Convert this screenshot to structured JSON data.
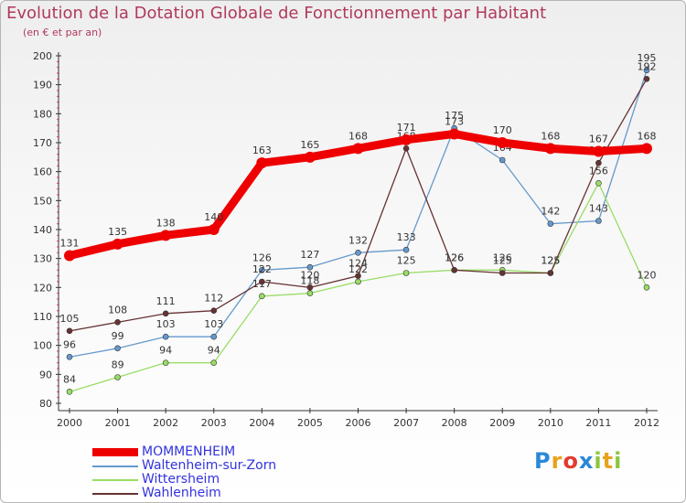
{
  "title": "Evolution de la Dotation Globale de Fonctionnement par Habitant",
  "subtitle": "(en € et par an)",
  "brand": {
    "text": "Proxiti",
    "colors": [
      "#2a88d8",
      "#e8a21c",
      "#e23b2f",
      "#2a88d8",
      "#8cc63f",
      "#e8a21c",
      "#8cc63f"
    ]
  },
  "chart_data": {
    "type": "line",
    "title": "Evolution de la Dotation Globale de Fonctionnement par Habitant",
    "subtitle": "(en € et par an)",
    "x": [
      "2000",
      "2001",
      "2002",
      "2003",
      "2004",
      "2005",
      "2006",
      "2007",
      "2008",
      "2009",
      "2010",
      "2011",
      "2012"
    ],
    "ylim": [
      80,
      200
    ],
    "yticks": [
      "80",
      "90",
      "100",
      "110",
      "120",
      "130",
      "140",
      "150",
      "160",
      "170",
      "180",
      "190",
      "200"
    ],
    "grid": false,
    "series": [
      {
        "name": "MOMMENHEIM",
        "color": "#ee0000",
        "values": [
          131,
          135,
          138,
          140,
          163,
          165,
          168,
          171,
          173,
          170,
          168,
          167,
          168
        ]
      },
      {
        "name": "Waltenheim-sur-Zorn",
        "color": "#6699cc",
        "values": [
          96,
          99,
          103,
          103,
          126,
          127,
          132,
          133,
          175,
          164,
          142,
          143,
          195
        ]
      },
      {
        "name": "Wittersheim",
        "color": "#99dd66",
        "values": [
          84,
          89,
          94,
          94,
          117,
          118,
          122,
          125,
          126,
          126,
          125,
          156,
          120
        ]
      },
      {
        "name": "Wahlenheim",
        "color": "#663333",
        "values": [
          105,
          108,
          111,
          112,
          122,
          120,
          124,
          168,
          126,
          125,
          125,
          163,
          192
        ]
      }
    ]
  }
}
